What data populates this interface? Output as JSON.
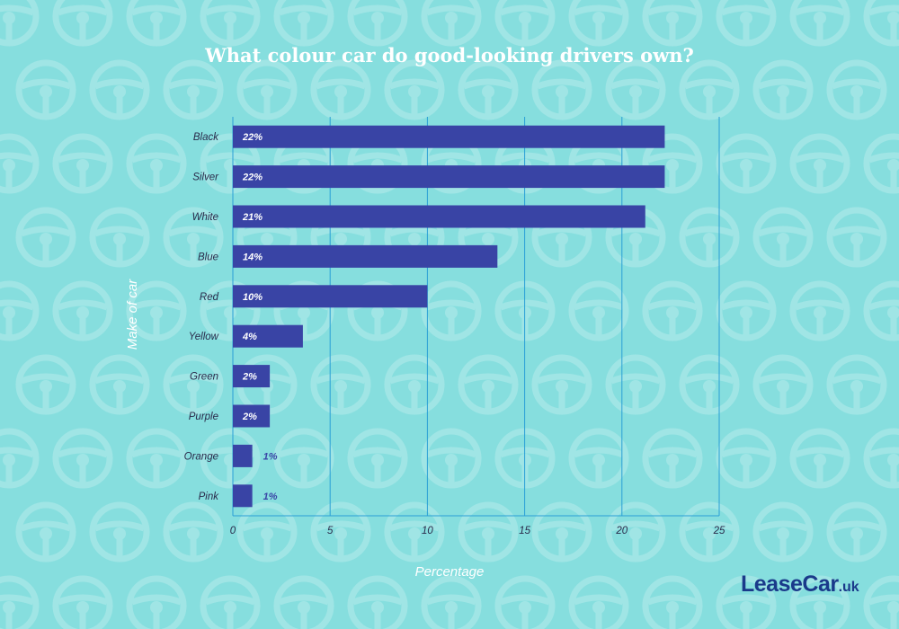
{
  "colors": {
    "background": "#86dede",
    "bar": "#3944a5",
    "grid": "#2a9fd6",
    "title": "#ffffff",
    "label_inside": "#ffffff",
    "label_outside": "#3944a5",
    "logo": "#1a3a8a"
  },
  "background_icon": "steering-wheel-icon",
  "logo": {
    "brand": "LeaseCar",
    "domain": ".uk"
  },
  "chart_data": {
    "type": "bar",
    "orientation": "horizontal",
    "title": "What colour car do good-looking drivers own?",
    "xlabel": "Percentage",
    "ylabel": "Make of car",
    "categories": [
      "Black",
      "Silver",
      "White",
      "Blue",
      "Red",
      "Yellow",
      "Green",
      "Purple",
      "Orange",
      "Pink"
    ],
    "values": [
      22.2,
      22.2,
      21.2,
      13.6,
      10.0,
      3.6,
      1.9,
      1.9,
      1.0,
      1.0
    ],
    "data_labels": [
      "22%",
      "22%",
      "21%",
      "14%",
      "10%",
      "4%",
      "2%",
      "2%",
      "1%",
      "1%"
    ],
    "xlim": [
      0,
      25
    ],
    "xticks": [
      "0",
      "5",
      "10",
      "15",
      "20",
      "25"
    ],
    "grid": true,
    "legend": "none"
  }
}
